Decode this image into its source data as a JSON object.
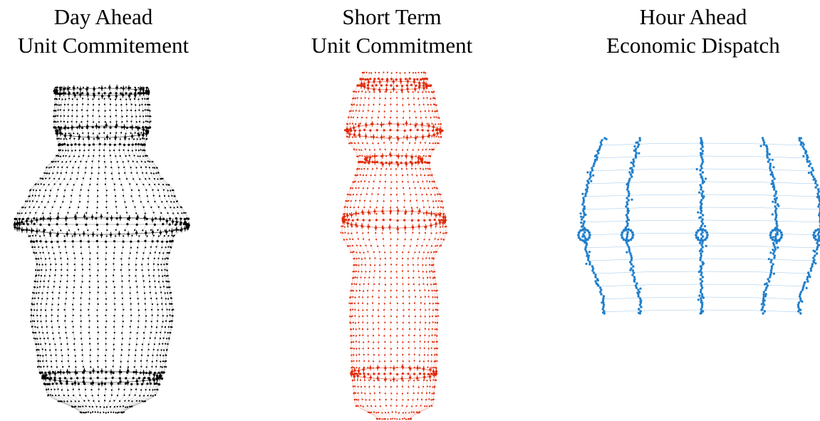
{
  "panels": [
    {
      "title_line1": "Day Ahead",
      "title_line2": "Unit Commitement",
      "color": "#000000"
    },
    {
      "title_line1": "Short Term",
      "title_line2": "Unit Commitment",
      "color": "#e02b0a"
    },
    {
      "title_line1": "Hour Ahead",
      "title_line2": "Economic Dispatch",
      "color": "#1f7fcc"
    }
  ]
}
